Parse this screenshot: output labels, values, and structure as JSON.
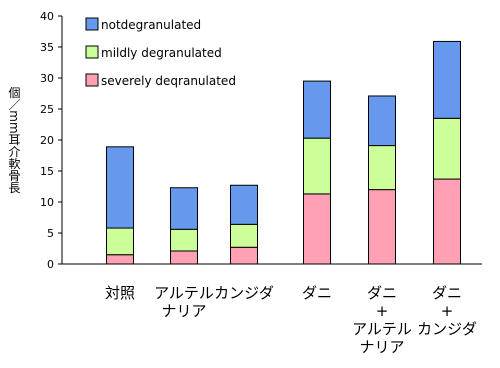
{
  "chart_data": {
    "type": "bar",
    "stacked": true,
    "ylabel": "個／mm耳介軟骨長",
    "ylim": [
      0,
      40
    ],
    "yticks": [
      0,
      5,
      10,
      15,
      20,
      25,
      30,
      35,
      40
    ],
    "categories": [
      [
        "対照"
      ],
      [
        "アルテル",
        "ナリア"
      ],
      [
        "カンジダ"
      ],
      [
        "ダニ"
      ],
      [
        "ダニ",
        "+",
        "アルテル",
        "ナリア"
      ],
      [
        "ダニ",
        "+",
        "カンジダ"
      ]
    ],
    "series": [
      {
        "name": "severely degranulated",
        "color": "#ffa0b4",
        "values": [
          1.5,
          2.1,
          2.7,
          11.3,
          12.0,
          13.7
        ]
      },
      {
        "name": "mildly degranulated",
        "color": "#ccff99",
        "values": [
          4.3,
          3.5,
          3.7,
          9.0,
          7.1,
          9.8
        ]
      },
      {
        "name": "not degranulated",
        "color": "#6699ee",
        "values": [
          13.1,
          6.7,
          6.3,
          9.2,
          8.0,
          12.4
        ]
      }
    ],
    "legend": {
      "position": "top-left",
      "order": [
        "not degranulated",
        "mildly degranulated",
        "severely degranulated"
      ],
      "labels": [
        "notdegranulated",
        "mildly degranulated",
        "severely deqranulated"
      ]
    },
    "grid": false
  }
}
